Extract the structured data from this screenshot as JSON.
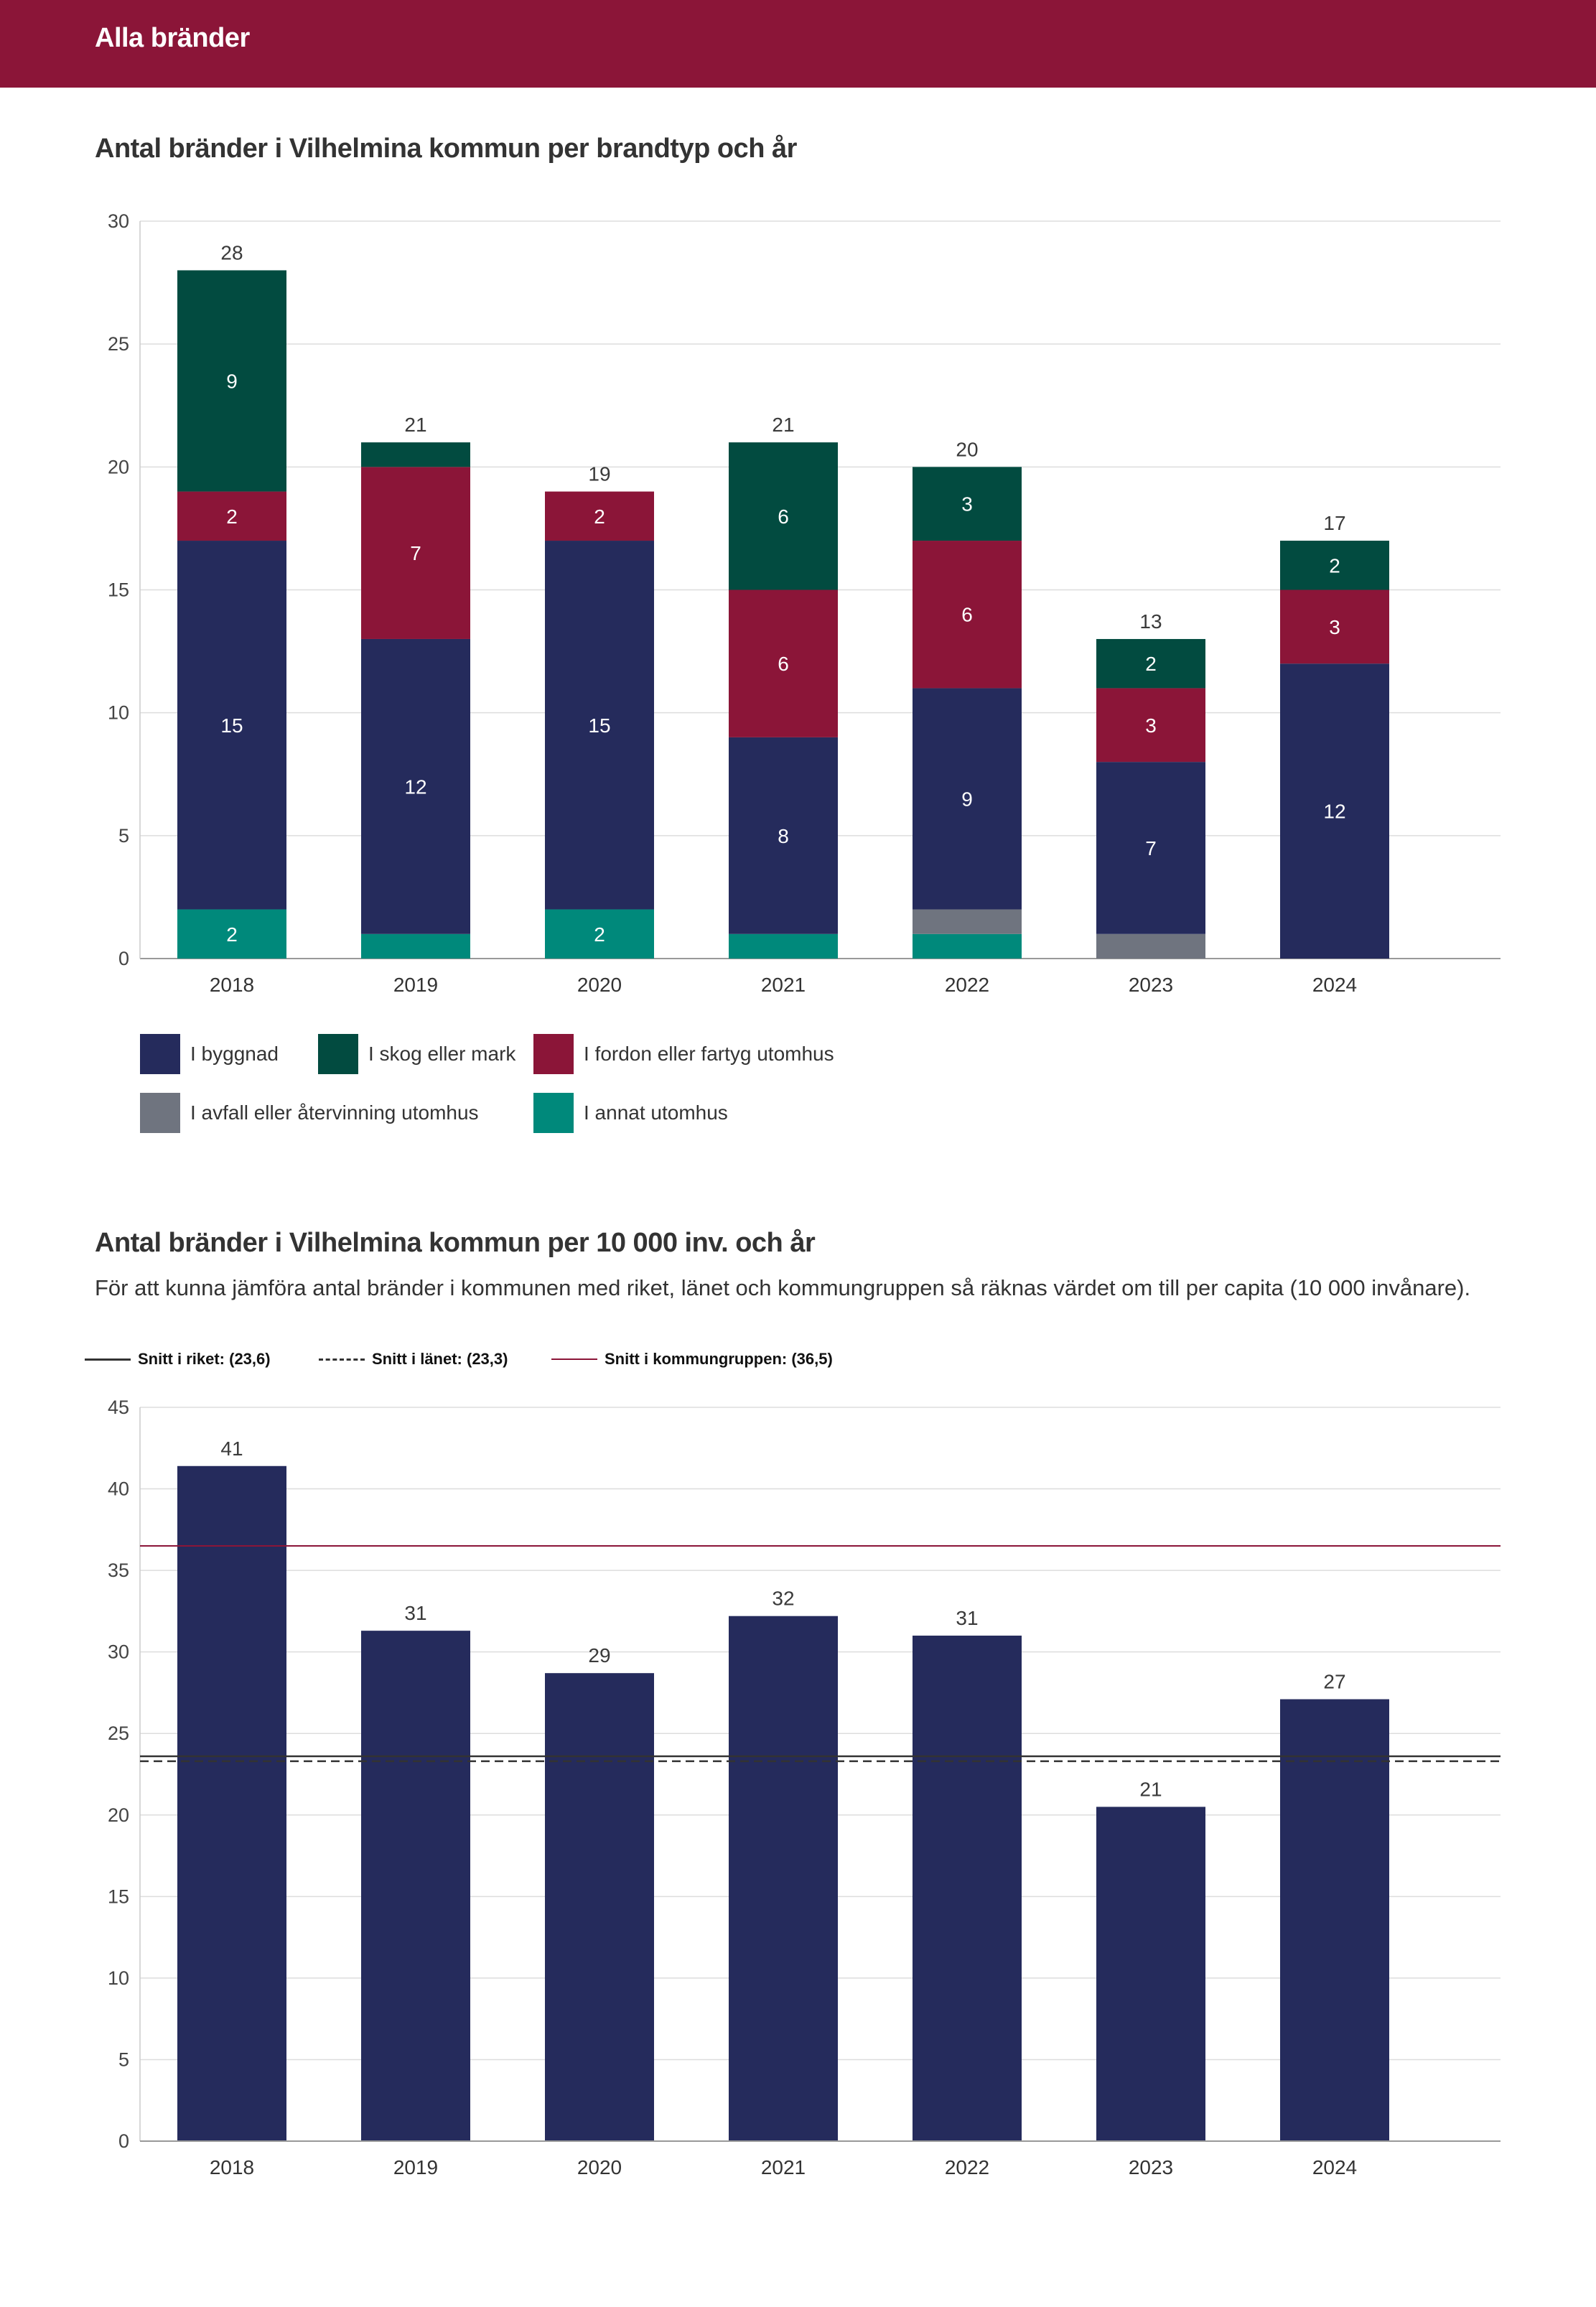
{
  "header": {
    "title": "Alla bränder"
  },
  "colors": {
    "header_bg": "#8b1538",
    "byggnad": "#252b5c",
    "skog": "#024b40",
    "fordon": "#8b1538",
    "avfall": "#6f747f",
    "annat": "#00897b",
    "riket_line": "#333333",
    "lanet_line": "#333333",
    "kommungrupp_line": "#8b1538"
  },
  "chart_data": [
    {
      "type": "bar",
      "stacked": true,
      "title": "Antal bränder i Vilhelmina kommun per brandtyp och år",
      "categories": [
        "2018",
        "2019",
        "2020",
        "2021",
        "2022",
        "2023",
        "2024"
      ],
      "ylim": [
        0,
        30
      ],
      "yticks": [
        "0",
        "5",
        "10",
        "15",
        "20",
        "25",
        "30"
      ],
      "totals": [
        "28",
        "21",
        "19",
        "21",
        "20",
        "13",
        "17"
      ],
      "series": [
        {
          "name": "I annat utomhus",
          "key": "annat",
          "values": [
            2,
            1,
            2,
            1,
            1,
            0,
            0
          ],
          "labels": [
            "2",
            "",
            "2",
            "",
            "",
            "",
            ""
          ]
        },
        {
          "name": "I avfall eller återvinning utomhus",
          "key": "avfall",
          "values": [
            0,
            0,
            0,
            0,
            1,
            1,
            0
          ],
          "labels": [
            "",
            "",
            "",
            "",
            "",
            "",
            ""
          ]
        },
        {
          "name": "I byggnad",
          "key": "byggnad",
          "values": [
            15,
            12,
            15,
            8,
            9,
            7,
            12
          ],
          "labels": [
            "15",
            "12",
            "15",
            "8",
            "9",
            "7",
            "12"
          ]
        },
        {
          "name": "I fordon eller fartyg utomhus",
          "key": "fordon",
          "values": [
            2,
            7,
            2,
            6,
            6,
            3,
            3
          ],
          "labels": [
            "2",
            "7",
            "2",
            "6",
            "6",
            "3",
            "3"
          ]
        },
        {
          "name": "I skog eller mark",
          "key": "skog",
          "values": [
            9,
            1,
            0,
            6,
            3,
            2,
            2
          ],
          "labels": [
            "9",
            "",
            "",
            "6",
            "3",
            "2",
            "2"
          ]
        }
      ],
      "legend": [
        {
          "label": "I byggnad",
          "key": "byggnad"
        },
        {
          "label": "I skog eller mark",
          "key": "skog"
        },
        {
          "label": "I fordon eller fartyg utomhus",
          "key": "fordon"
        },
        {
          "label": "I avfall eller återvinning utomhus",
          "key": "avfall"
        },
        {
          "label": "I annat utomhus",
          "key": "annat"
        }
      ]
    },
    {
      "type": "bar",
      "title": "Antal bränder i Vilhelmina kommun per 10 000 inv. och år",
      "subtitle": "För att kunna jämföra antal bränder i kommunen med riket, länet och kommungruppen så räknas värdet om till per capita (10 000 invånare).",
      "categories": [
        "2018",
        "2019",
        "2020",
        "2021",
        "2022",
        "2023",
        "2024"
      ],
      "values": [
        41.4,
        31.3,
        28.7,
        32.2,
        31.0,
        20.5,
        27.1
      ],
      "value_labels": [
        "41",
        "31",
        "29",
        "32",
        "31",
        "21",
        "27"
      ],
      "ylim": [
        0,
        45
      ],
      "yticks": [
        "0",
        "5",
        "10",
        "15",
        "20",
        "25",
        "30",
        "35",
        "40",
        "45"
      ],
      "reference_lines": [
        {
          "label": "Snitt i riket: (23,6)",
          "value": 23.6,
          "style": "solid",
          "key": "riket_line"
        },
        {
          "label": "Snitt i länet: (23,3)",
          "value": 23.3,
          "style": "dashed",
          "key": "lanet_line"
        },
        {
          "label": "Snitt i kommungruppen: (36,5)",
          "value": 36.5,
          "style": "solid",
          "key": "kommungrupp_line"
        }
      ]
    }
  ]
}
